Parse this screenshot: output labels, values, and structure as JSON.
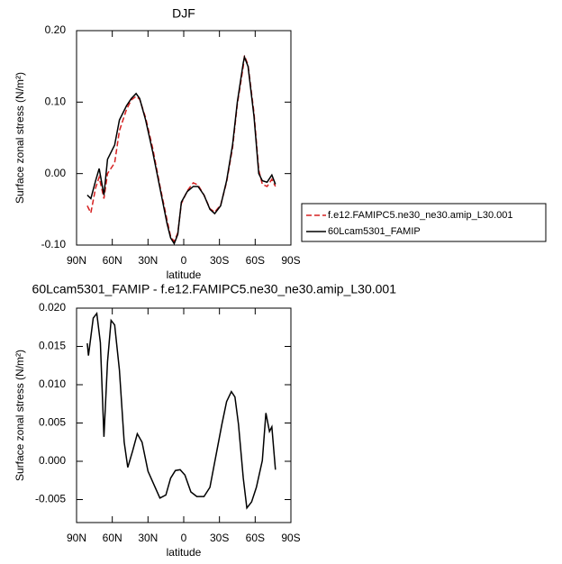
{
  "chart_data": [
    {
      "type": "line",
      "title": "DJF",
      "xlabel": "latitude",
      "ylabel": "Surface zonal stress (N/m²)",
      "x": [
        81,
        78,
        74,
        71,
        67,
        64,
        58,
        54,
        48,
        44,
        40,
        37,
        32,
        26,
        20,
        14,
        11,
        8,
        5,
        2,
        -3,
        -8,
        -12,
        -17,
        -22,
        -26,
        -31,
        -36,
        -41,
        -45,
        -50,
        -51,
        -54,
        -59,
        -63,
        -66,
        -70,
        -74,
        -77
      ],
      "series": [
        {
          "name": "f.e12.FAMIPC5.ne30_ne30.amip_L30.001",
          "color": "#d62020",
          "dash": true,
          "values": [
            -0.045,
            -0.055,
            -0.02,
            -0.005,
            -0.035,
            0.0,
            0.015,
            0.06,
            0.09,
            0.103,
            0.108,
            0.104,
            0.078,
            0.035,
            -0.017,
            -0.065,
            -0.088,
            -0.095,
            -0.083,
            -0.042,
            -0.024,
            -0.013,
            -0.016,
            -0.03,
            -0.049,
            -0.054,
            -0.044,
            -0.012,
            0.036,
            0.097,
            0.15,
            0.165,
            0.152,
            0.085,
            0.005,
            -0.015,
            -0.018,
            -0.008,
            -0.018
          ]
        },
        {
          "name": "60Lcam5301_FAMIP",
          "color": "#000000",
          "dash": false,
          "values": [
            -0.03,
            -0.035,
            -0.01,
            0.007,
            -0.03,
            0.02,
            0.04,
            0.075,
            0.095,
            0.105,
            0.112,
            0.105,
            0.075,
            0.03,
            -0.02,
            -0.07,
            -0.09,
            -0.098,
            -0.085,
            -0.04,
            -0.025,
            -0.018,
            -0.018,
            -0.03,
            -0.05,
            -0.056,
            -0.045,
            -0.01,
            0.04,
            0.1,
            0.155,
            0.163,
            0.15,
            0.08,
            0.0,
            -0.01,
            -0.012,
            -0.002,
            -0.015
          ]
        }
      ],
      "xlim": [
        90,
        -90
      ],
      "xticks": [
        {
          "value": 90,
          "label": "90N"
        },
        {
          "value": 60,
          "label": "60N"
        },
        {
          "value": 30,
          "label": "30N"
        },
        0,
        {
          "value": -30,
          "label": "30S"
        },
        {
          "value": -60,
          "label": "60S"
        },
        {
          "value": -90,
          "label": "90S"
        }
      ],
      "ylim": [
        -0.1,
        0.2
      ],
      "yticks": [
        {
          "value": -0.1,
          "label": "-0.10"
        },
        {
          "value": 0,
          "label": "0.00"
        },
        {
          "value": 0.1,
          "label": "0.10"
        },
        {
          "value": 0.2,
          "label": "0.20"
        }
      ],
      "legend": "right"
    },
    {
      "type": "line",
      "title": "60Lcam5301_FAMIP - f.e12.FAMIPC5.ne30_ne30.amip_L30.001",
      "xlabel": "latitude",
      "ylabel": "Surface zonal stress (N/m²)",
      "x": [
        81,
        80,
        76,
        73,
        70,
        67,
        64,
        61,
        58,
        54,
        50,
        47,
        43,
        39,
        35,
        30,
        24,
        20,
        15,
        11,
        7,
        3,
        -1,
        -6,
        -11,
        -17,
        -22,
        -27,
        -32,
        -36,
        -40,
        -43,
        -46,
        -50,
        -53,
        -57,
        -61,
        -66,
        -69,
        -72,
        -74,
        -77
      ],
      "series": [
        {
          "color": "#000000",
          "dash": false,
          "values": [
            0.0154,
            0.0138,
            0.0187,
            0.0193,
            0.0155,
            0.0032,
            0.013,
            0.0184,
            0.0178,
            0.0119,
            0.0025,
            -0.0008,
            0.0013,
            0.0036,
            0.0025,
            -0.0013,
            -0.0034,
            -0.0048,
            -0.0044,
            -0.0022,
            -0.0012,
            -0.0011,
            -0.0018,
            -0.004,
            -0.0046,
            -0.0046,
            -0.0034,
            0.0007,
            0.0048,
            0.0078,
            0.0091,
            0.0084,
            0.0048,
            -0.0022,
            -0.0061,
            -0.0053,
            -0.0034,
            0.0001,
            0.0063,
            0.0039,
            0.0045,
            -0.0011
          ]
        }
      ],
      "xlim": [
        90,
        -90
      ],
      "xticks": [
        {
          "value": 90,
          "label": "90N"
        },
        {
          "value": 60,
          "label": "60N"
        },
        {
          "value": 30,
          "label": "30N"
        },
        0,
        {
          "value": -30,
          "label": "30S"
        },
        {
          "value": -60,
          "label": "60S"
        },
        {
          "value": -90,
          "label": "90S"
        }
      ],
      "ylim": [
        -0.008,
        0.02
      ],
      "yticks": [
        {
          "value": -0.005,
          "label": "-0.005"
        },
        {
          "value": 0,
          "label": "0.000"
        },
        {
          "value": 0.005,
          "label": "0.005"
        },
        {
          "value": 0.01,
          "label": "0.010"
        },
        {
          "value": 0.015,
          "label": "0.015"
        },
        {
          "value": 0.02,
          "label": "0.020"
        }
      ]
    }
  ]
}
